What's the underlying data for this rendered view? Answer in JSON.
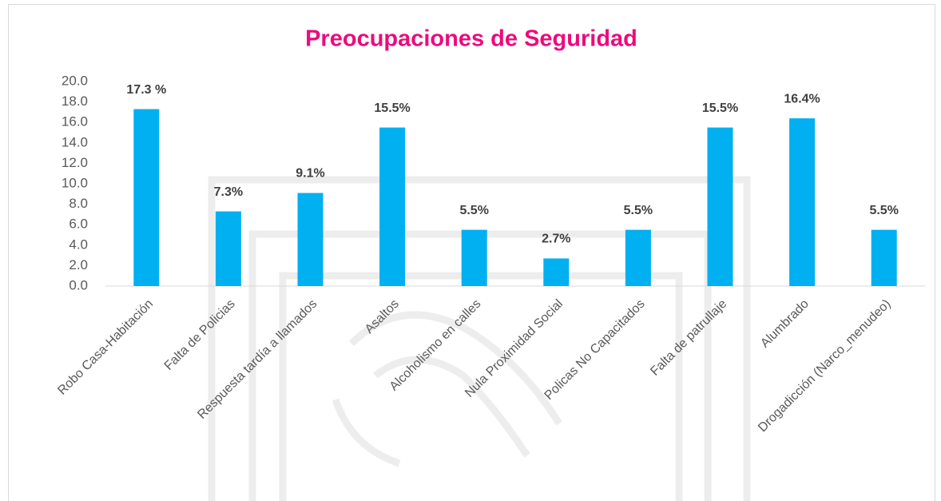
{
  "chart_data": {
    "type": "bar",
    "title": "Preocupaciones de Seguridad",
    "categories": [
      "Robo Casa-Habitación",
      "Falta de Policias",
      "Respuesta tardía a llamados",
      "Asaltos",
      "Alcoholismo en calles",
      "Nula Proximidad Social",
      "Policas No Capacitados",
      "Falta de patrullaje",
      "Alumbrado",
      "Drogadicción (Narco_menudeo)"
    ],
    "values": [
      17.3,
      7.3,
      9.1,
      15.5,
      5.5,
      2.7,
      5.5,
      15.5,
      16.4,
      5.5
    ],
    "value_labels": [
      "17.3 %",
      "7.3%",
      "9.1%",
      "15.5%",
      "5.5%",
      "2.7%",
      "5.5%",
      "15.5%",
      "16.4%",
      "5.5%"
    ],
    "color": "#00b0f0",
    "ylim": [
      0,
      20
    ],
    "yticks": [
      {
        "value": 0,
        "label": "0.0"
      },
      {
        "value": 2,
        "label": "2.0"
      },
      {
        "value": 4,
        "label": "4.0"
      },
      {
        "value": 6,
        "label": "6.0"
      },
      {
        "value": 8,
        "label": "8.0"
      },
      {
        "value": 10,
        "label": "10.0"
      },
      {
        "value": 12,
        "label": "12.0"
      },
      {
        "value": 14,
        "label": "14.0"
      },
      {
        "value": 16,
        "label": "16.0"
      },
      {
        "value": 18,
        "label": "18.0"
      },
      {
        "value": 20,
        "label": "20.0"
      }
    ]
  }
}
